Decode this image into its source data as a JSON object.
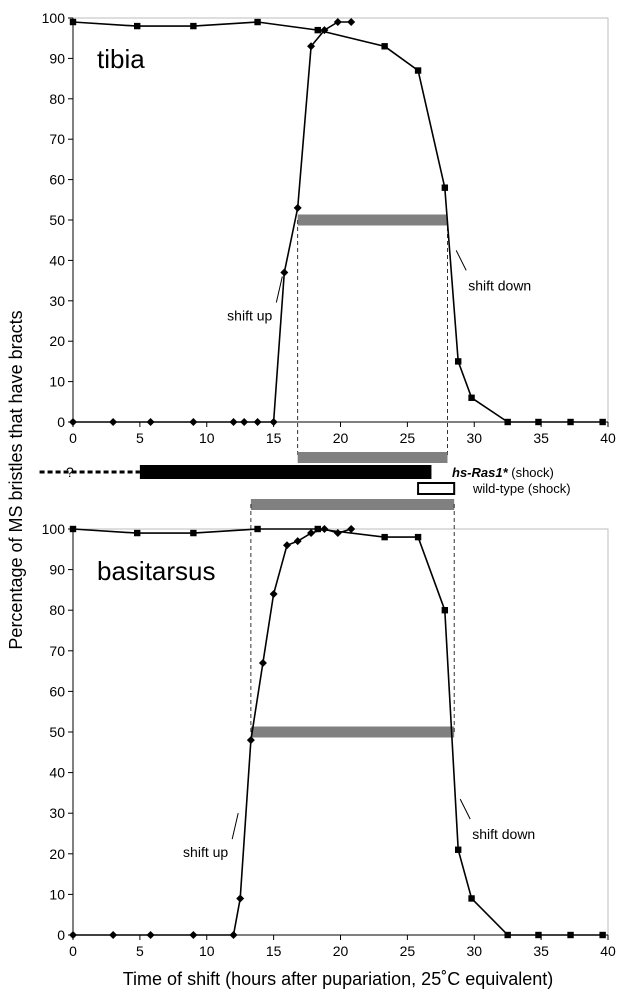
{
  "xlabel": "Time of shift (hours after pupariation, 25˚C equivalent)",
  "ylabel": "Percentage of MS bristles that have bracts",
  "chart_data": [
    {
      "type": "line",
      "panel_label": "tibia",
      "xlim": [
        0,
        40
      ],
      "ylim": [
        0,
        100
      ],
      "xticks": [
        "0",
        "5",
        "10",
        "15",
        "20",
        "25",
        "30",
        "35",
        "40"
      ],
      "yticks": [
        "0",
        "10",
        "20",
        "30",
        "40",
        "50",
        "60",
        "70",
        "80",
        "90",
        "100"
      ],
      "grid": false,
      "series": [
        {
          "marker": "diamond",
          "x": [
            0,
            3,
            5.8,
            9,
            12,
            12.8,
            13.8,
            15,
            15.8,
            16.8,
            17.8,
            18.8,
            19.8,
            20.8
          ],
          "y": [
            0,
            0,
            0,
            0,
            0,
            0,
            0,
            0,
            37,
            53,
            93,
            97,
            99,
            99
          ]
        },
        {
          "marker": "square",
          "x": [
            0,
            4.8,
            9,
            13.8,
            18.3,
            23.3,
            25.8,
            27.8,
            28.8,
            29.8,
            32.5,
            34.8,
            37.2,
            39.6
          ],
          "y": [
            99,
            98,
            98,
            99,
            97,
            93,
            87,
            58,
            15,
            6,
            0,
            0,
            0,
            0
          ]
        }
      ],
      "annotations": [
        {
          "text": "shift up",
          "x": 15.8,
          "y": 37
        },
        {
          "text": "shift down",
          "x": 28.5,
          "y": 40
        }
      ],
      "half_max_bar": {
        "x_start": 16.8,
        "x_end": 28.0,
        "y": 50
      }
    },
    {
      "type": "line",
      "panel_label": "basitarsus",
      "xlim": [
        0,
        40
      ],
      "ylim": [
        0,
        100
      ],
      "xticks": [
        "0",
        "5",
        "10",
        "15",
        "20",
        "25",
        "30",
        "35",
        "40"
      ],
      "yticks": [
        "0",
        "10",
        "20",
        "30",
        "40",
        "50",
        "60",
        "70",
        "80",
        "90",
        "100"
      ],
      "grid": false,
      "series": [
        {
          "marker": "diamond",
          "x": [
            0,
            3,
            5.8,
            9,
            12,
            12.5,
            13.3,
            14.2,
            15,
            16,
            16.8,
            17.8,
            18.8,
            19.8,
            20.8
          ],
          "y": [
            0,
            0,
            0,
            0,
            0,
            9,
            48,
            67,
            84,
            96,
            97,
            99,
            100,
            99,
            100
          ]
        },
        {
          "marker": "square",
          "x": [
            0,
            4.8,
            9,
            13.8,
            18.3,
            23.3,
            25.8,
            27.8,
            28.8,
            29.8,
            32.5,
            34.8,
            37.2,
            39.6
          ],
          "y": [
            100,
            99,
            99,
            100,
            100,
            98,
            98,
            80,
            21,
            9,
            0,
            0,
            0,
            0
          ]
        }
      ],
      "annotations": [
        {
          "text": "shift up",
          "x": 12.5,
          "y": 31
        },
        {
          "text": "shift down",
          "x": 28.8,
          "y": 31
        }
      ],
      "half_max_bar": {
        "x_start": 13.3,
        "x_end": 28.5,
        "y": 50
      }
    }
  ],
  "legend": {
    "question_mark": "?",
    "hs_ras_label_italic": "hs-Ras1*",
    "hs_ras_label_suffix": " (shock)",
    "hs_ras_bar": {
      "x_start": 5,
      "x_end": 26.8
    },
    "hs_ras_dashed": {
      "x_start": -2.5,
      "x_end": 5
    },
    "wildtype_label": "wild-type (shock)",
    "wildtype_bar": {
      "x_start": 25.8,
      "x_end": 28.5
    },
    "gray_bar_tibia": {
      "x_start": 16.8,
      "x_end": 28.0
    },
    "gray_bar_basitarsus": {
      "x_start": 13.3,
      "x_end": 28.5
    }
  },
  "colors": {
    "line": "#000000",
    "half_max_bar": "#808080",
    "legend_bar": "#000000",
    "wildtype_fill": "#ffffff"
  }
}
